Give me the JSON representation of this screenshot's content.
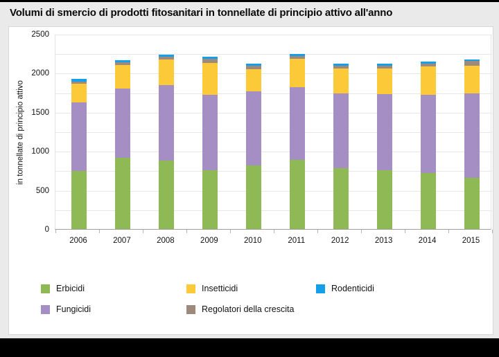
{
  "page": {
    "title": "Volumi di smercio di prodotti fitosanitari in tonnellate di principio attivo all'anno"
  },
  "chart_data": {
    "type": "bar",
    "stacked": true,
    "title": "Volumi di smercio di prodotti fitosanitari in tonnellate di principio attivo all'anno",
    "xlabel": "",
    "ylabel": "in tonnellate di principio attivo",
    "ylim": [
      0,
      2500
    ],
    "ytick_labels": [
      "0",
      "500",
      "1000",
      "1500",
      "2000",
      "2500"
    ],
    "ytick_step": 500,
    "gridline_step": 250,
    "grid": true,
    "legend_position": "bottom",
    "categories": [
      "2006",
      "2007",
      "2008",
      "2009",
      "2010",
      "2011",
      "2012",
      "2013",
      "2014",
      "2015"
    ],
    "series": [
      {
        "name": "Erbicidi",
        "color": "#8eb954",
        "values": [
          745,
          915,
          875,
          750,
          815,
          885,
          780,
          755,
          720,
          660
        ]
      },
      {
        "name": "Fungicidi",
        "color": "#a48ec3",
        "values": [
          880,
          885,
          965,
          970,
          950,
          935,
          960,
          970,
          1000,
          1075
        ]
      },
      {
        "name": "Insetticidi",
        "color": "#fcc938",
        "values": [
          235,
          305,
          330,
          410,
          285,
          365,
          320,
          335,
          360,
          355
        ]
      },
      {
        "name": "Regolatori della crescita",
        "color": "#9d8a7d",
        "values": [
          30,
          35,
          35,
          55,
          40,
          35,
          30,
          35,
          40,
          60
        ]
      },
      {
        "name": "Rodenticidi",
        "color": "#14a0e8",
        "values": [
          30,
          25,
          30,
          25,
          25,
          25,
          25,
          25,
          25,
          25
        ]
      }
    ],
    "totals": [
      1920,
      2165,
      2235,
      2210,
      2115,
      2245,
      2115,
      2120,
      2145,
      2175
    ]
  }
}
